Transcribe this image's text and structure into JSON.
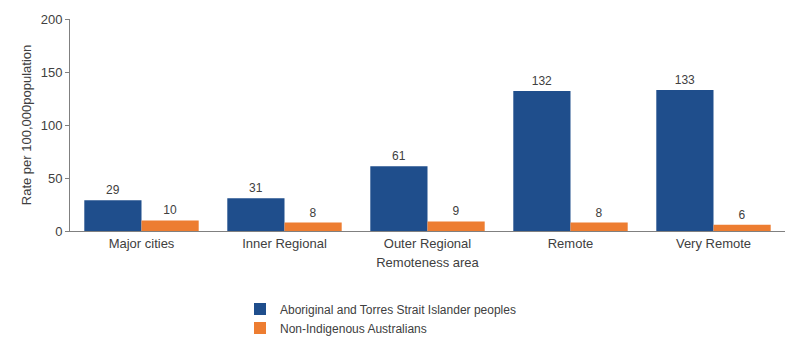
{
  "chart_data": {
    "type": "bar",
    "x_label": "Remoteness area",
    "y_label": "Rate per 100,000population",
    "categories": [
      "Major cities",
      "Inner Regional",
      "Outer Regional",
      "Remote",
      "Very Remote"
    ],
    "series": [
      {
        "name": "Aboriginal and Torres Strait Islander peoples",
        "color": "#1F4E8C",
        "values": [
          29,
          31,
          61,
          132,
          133
        ]
      },
      {
        "name": "Non-Indigenous Australians",
        "color": "#ED7D31",
        "values": [
          10,
          8,
          9,
          8,
          6
        ]
      }
    ],
    "ylim": [
      0,
      200
    ],
    "yticks": [
      0,
      50,
      100,
      150,
      200
    ],
    "grid": false,
    "legend": "bottom",
    "data_labels": true
  }
}
